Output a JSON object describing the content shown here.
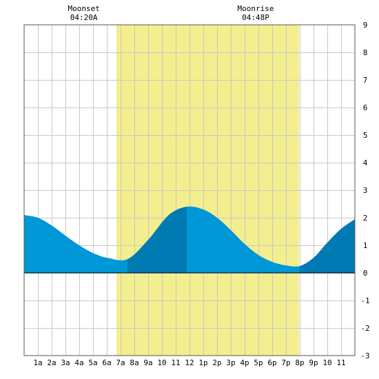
{
  "chart_data": {
    "type": "area",
    "title": "",
    "xlabel": "",
    "ylabel": "",
    "xlim": [
      0,
      24
    ],
    "ylim": [
      -3,
      9
    ],
    "y_ticks": [
      -3,
      -2,
      -1,
      0,
      1,
      2,
      3,
      4,
      5,
      6,
      7,
      8,
      9
    ],
    "y_axis_position": "right",
    "x_tick_labels": [
      "1a",
      "2a",
      "3a",
      "4a",
      "5a",
      "6a",
      "7a",
      "8a",
      "9a",
      "10",
      "11",
      "12",
      "1p",
      "2p",
      "3p",
      "4p",
      "5p",
      "6p",
      "7p",
      "8p",
      "9p",
      "10",
      "11"
    ],
    "grid": true,
    "daylight": {
      "start": 6.7,
      "end": 19.95,
      "color": "#f3ee8e"
    },
    "series": [
      {
        "values": [
          [
            0,
            2.1
          ],
          [
            1,
            2.0
          ],
          [
            2,
            1.72
          ],
          [
            3,
            1.35
          ],
          [
            4,
            1.0
          ],
          [
            5,
            0.72
          ],
          [
            6,
            0.55
          ],
          [
            7.5,
            0.5
          ],
          [
            9,
            1.2
          ],
          [
            10.5,
            2.1
          ],
          [
            11.8,
            2.4
          ],
          [
            13,
            2.3
          ],
          [
            14,
            2.0
          ],
          [
            15,
            1.55
          ],
          [
            16,
            1.05
          ],
          [
            17,
            0.65
          ],
          [
            18,
            0.4
          ],
          [
            19,
            0.27
          ],
          [
            20,
            0.25
          ],
          [
            21,
            0.55
          ],
          [
            22,
            1.1
          ],
          [
            23,
            1.6
          ],
          [
            24,
            1.95
          ]
        ]
      }
    ],
    "extremes": [
      {
        "type": "low",
        "x": 7.5,
        "y": 0.5
      },
      {
        "type": "high",
        "x": 11.8,
        "y": 2.4
      },
      {
        "type": "low",
        "x": 20.0,
        "y": 0.25
      }
    ],
    "colors": {
      "fill_light": "#0097d7",
      "fill_dark": "#007ab3",
      "grid": "#c8c8c8",
      "frame": "#555555"
    },
    "annotations": [
      {
        "label": "Moonset",
        "time": "04:20A",
        "x": 4.333
      },
      {
        "label": "Moonrise",
        "time": "04:48P",
        "x": 16.8
      }
    ]
  }
}
